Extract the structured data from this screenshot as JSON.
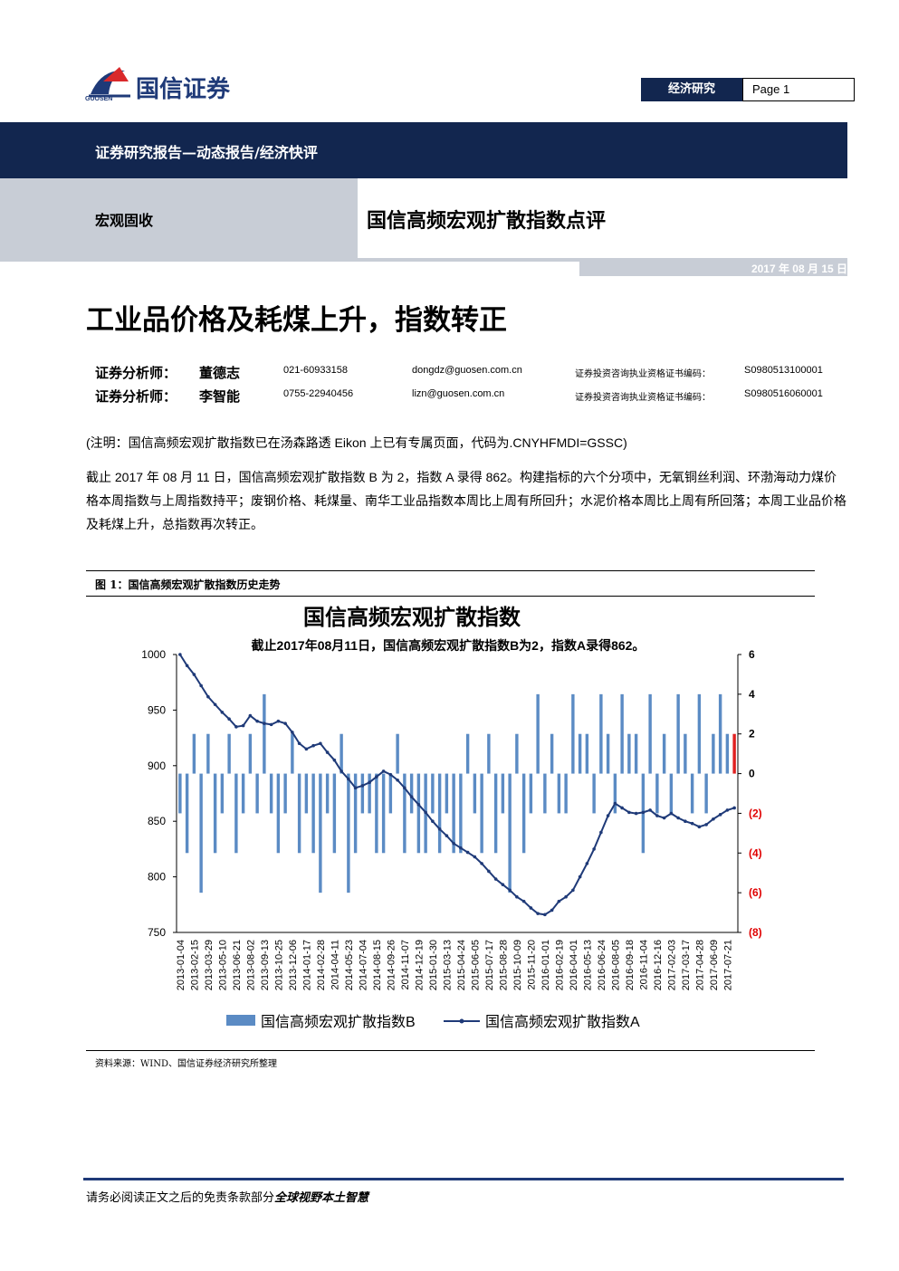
{
  "header": {
    "logo_text": "国信证券",
    "logo_sub": "GUOSEN",
    "section": "经济研究",
    "page": "Page 1"
  },
  "banner": "证券研究报告—动态报告/经济快评",
  "category": "宏观固收",
  "title": "国信高频宏观扩散指数点评",
  "date": "2017 年 08 月 15 日",
  "headline": "工业品价格及耗煤上升，指数转正",
  "analysts": [
    {
      "role": "证券分析师：",
      "name": "董德志",
      "phone": "021-60933158",
      "email": "dongdz@guosen.com.cn",
      "cert_label": "证券投资咨询执业资格证书编码：",
      "cert": "S0980513100001"
    },
    {
      "role": "证券分析师：",
      "name": "李智能",
      "phone": "0755-22940456",
      "email": "lizn@guosen.com.cn",
      "cert_label": "证券投资咨询执业资格证书编码：",
      "cert": "S0980516060001"
    }
  ],
  "note": "(注明：国信高频宏观扩散指数已在汤森路透 Eikon 上已有专属页面，代码为.CNYHFMDI=GSSC)",
  "paragraph": "截止 2017 年 08 月 11 日，国信高频宏观扩散指数 B 为 2，指数 A 录得 862。构建指标的六个分项中，无氧铜丝利润、环渤海动力煤价格本周指数与上周指数持平；废钢价格、耗煤量、南华工业品指数本周比上周有所回升；水泥价格本周比上周有所回落；本周工业品价格及耗煤上升，总指数再次转正。",
  "figure": {
    "caption": "图 1：国信高频宏观扩散指数历史走势",
    "source": "资料来源：WIND、国信证券经济研究所整理",
    "chart_data": {
      "type": "bar_line",
      "title": "国信高频宏观扩散指数",
      "subtitle": "截止2017年08月11日，国信高频宏观扩散指数B为2，指数A录得862。",
      "categories": [
        "2013-01-04",
        null,
        "2013-02-15",
        null,
        "2013-03-29",
        null,
        "2013-05-10",
        null,
        "2013-06-21",
        null,
        "2013-08-02",
        null,
        "2013-09-13",
        null,
        "2013-10-25",
        null,
        "2013-12-06",
        null,
        "2014-01-17",
        null,
        "2014-02-28",
        null,
        "2014-04-11",
        null,
        "2014-05-23",
        null,
        "2014-07-04",
        null,
        "2014-08-15",
        null,
        "2014-09-26",
        null,
        "2014-11-07",
        null,
        "2014-12-19",
        null,
        "2015-01-30",
        null,
        "2015-03-13",
        null,
        "2015-04-24",
        null,
        "2015-06-05",
        null,
        "2015-07-17",
        null,
        "2015-08-28",
        null,
        "2015-10-09",
        null,
        "2015-11-20",
        null,
        "2016-01-01",
        null,
        "2016-02-19",
        null,
        "2016-04-01",
        null,
        "2016-05-13",
        null,
        "2016-06-24",
        null,
        "2016-08-05",
        null,
        "2016-09-18",
        null,
        "2016-11-04",
        null,
        "2016-12-16",
        null,
        "2017-02-03",
        null,
        "2017-03-17",
        null,
        "2017-04-28",
        null,
        "2017-06-09",
        null,
        "2017-07-21",
        null
      ],
      "series": [
        {
          "name": "国信高频宏观扩散指数B",
          "type": "bar",
          "axis": "y2",
          "color": "#5b8bc4",
          "last_color": "#e02020",
          "values": [
            -2,
            -4,
            2,
            -6,
            2,
            -4,
            -2,
            2,
            -4,
            -2,
            2,
            -2,
            4,
            -2,
            -4,
            -2,
            2,
            -4,
            -2,
            -4,
            -6,
            -2,
            -4,
            2,
            -6,
            -4,
            -2,
            -2,
            -4,
            -4,
            -2,
            2,
            -4,
            -2,
            -4,
            -4,
            -2,
            -4,
            -2,
            -4,
            -4,
            2,
            -2,
            -4,
            2,
            -4,
            -2,
            -6,
            2,
            -4,
            -2,
            4,
            -2,
            2,
            -2,
            -2,
            4,
            2,
            2,
            -2,
            4,
            2,
            -2,
            4,
            2,
            2,
            -4,
            4,
            -2,
            2,
            -2,
            4,
            2,
            -2,
            4,
            -2,
            2,
            4,
            2,
            2
          ]
        },
        {
          "name": "国信高频宏观扩散指数A",
          "type": "line",
          "color": "#1f3a78",
          "values": [
            1000,
            990,
            982,
            972,
            962,
            955,
            948,
            942,
            935,
            936,
            945,
            940,
            938,
            937,
            940,
            938,
            930,
            920,
            915,
            918,
            920,
            912,
            905,
            895,
            888,
            880,
            882,
            885,
            890,
            895,
            892,
            887,
            880,
            872,
            865,
            858,
            850,
            843,
            837,
            830,
            826,
            822,
            818,
            812,
            805,
            798,
            793,
            788,
            782,
            778,
            772,
            767,
            766,
            770,
            778,
            782,
            788,
            800,
            812,
            825,
            840,
            855,
            866,
            862,
            858,
            857,
            858,
            860,
            855,
            853,
            857,
            853,
            850,
            848,
            845,
            847,
            852,
            856,
            860,
            862
          ]
        }
      ],
      "ylim": [
        750,
        1000
      ],
      "yticks": [
        750,
        800,
        850,
        900,
        950,
        1000
      ],
      "y2lim": [
        -8,
        6
      ],
      "y2ticks": [
        {
          "value": -8,
          "label": "(8)"
        },
        {
          "value": -6,
          "label": "(6)"
        },
        {
          "value": -4,
          "label": "(4)"
        },
        {
          "value": -2,
          "label": "(2)"
        },
        0,
        2,
        4,
        6
      ],
      "y2_negative_color": "#e00000",
      "legend": "bottom"
    }
  },
  "footer": {
    "text": "请务必阅读正文之后的免责条款部分",
    "slogan": "全球视野本土智慧"
  }
}
